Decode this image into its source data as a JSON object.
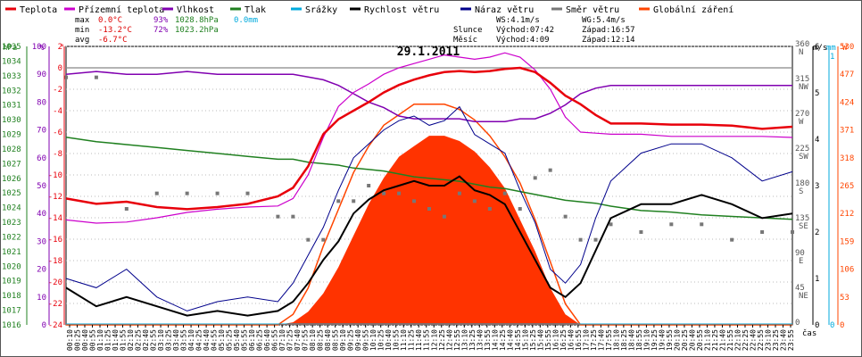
{
  "chart_data": {
    "type": "line",
    "title": "29.1.2011",
    "legend": [
      {
        "name": "Teplota",
        "color": "#e8000b"
      },
      {
        "name": "Přízemní teplota",
        "color": "#cc00cc"
      },
      {
        "name": "Vlhkost",
        "color": "#8000b0"
      },
      {
        "name": "Tlak",
        "color": "#208020"
      },
      {
        "name": "Srážky",
        "color": "#00aadd"
      },
      {
        "name": "Rychlost větru",
        "color": "#000000"
      },
      {
        "name": "Náraz větru",
        "color": "#00008b"
      },
      {
        "name": "Směr větru",
        "color": "#777777"
      },
      {
        "name": "Globální záření",
        "color": "#ff4500"
      }
    ],
    "stats": {
      "max_label": "max",
      "max_temp": "0.0°C",
      "max_hum": "93%",
      "max_press": "1028.8hPa",
      "max_rain": "0.0mm",
      "min_label": "min",
      "min_temp": "-13.2°C",
      "min_hum": "72%",
      "min_press": "1023.2hPa",
      "avg_label": "avg",
      "avg_temp": "-6.7°C",
      "ws_label": "WS:4.1m/s",
      "wg_label": "WG:5.4m/s",
      "sun_label": "Slunce",
      "sun_rise": "Východ:07:42",
      "sun_set": "Západ:16:57",
      "moon_label": "Měsíc",
      "moon_rise": "Východ:4:09",
      "moon_set": "Západ:12:14"
    },
    "axes": {
      "hpa_unit": "hPa",
      "pct_unit": "%",
      "temp_unit": "°",
      "ms_unit": "m/s",
      "mm_unit": "mm",
      "w_unit": "W",
      "hpa_ticks": [
        "1035",
        "1034",
        "1033",
        "1032",
        "1031",
        "1030",
        "1029",
        "1028",
        "1027",
        "1026",
        "1025",
        "1024",
        "1023",
        "1022",
        "1021",
        "1020",
        "1019",
        "1018",
        "1017",
        "1016"
      ],
      "pct_ticks": [
        "100",
        "90",
        "80",
        "70",
        "60",
        "50",
        "40",
        "30",
        "20",
        "10",
        "0"
      ],
      "temp_ticks": [
        "2",
        "0",
        "-2",
        "-4",
        "-6",
        "-8",
        "-10",
        "-12",
        "-14",
        "-16",
        "-18",
        "-20",
        "-22",
        "-24"
      ],
      "temp_range": [
        -24,
        2
      ],
      "dir_ticks": [
        {
          "deg": "360",
          "lbl": "N"
        },
        {
          "deg": "315",
          "lbl": "NW"
        },
        {
          "deg": "270",
          "lbl": "W"
        },
        {
          "deg": "225",
          "lbl": "SW"
        },
        {
          "deg": "180",
          "lbl": "S"
        },
        {
          "deg": "135",
          "lbl": "SE"
        },
        {
          "deg": "90",
          "lbl": "E"
        },
        {
          "deg": "45",
          "lbl": "NE"
        },
        {
          "deg": "0",
          "lbl": ""
        }
      ],
      "ms_ticks": [
        "6",
        "5",
        "4",
        "3",
        "2",
        "1",
        "0"
      ],
      "mm_ticks": [
        "1",
        "0"
      ],
      "w_ticks": [
        "530",
        "477",
        "424",
        "371",
        "318",
        "265",
        "212",
        "159",
        "106",
        "53",
        "0"
      ],
      "time_unit": "čas",
      "time_ticks": [
        "00:10",
        "00:25",
        "00:40",
        "00:55",
        "01:10",
        "01:25",
        "01:40",
        "01:55",
        "02:10",
        "02:25",
        "02:40",
        "02:55",
        "03:10",
        "03:25",
        "03:40",
        "03:55",
        "04:10",
        "04:25",
        "04:40",
        "04:55",
        "05:10",
        "05:25",
        "05:40",
        "05:55",
        "06:10",
        "06:25",
        "06:40",
        "06:55",
        "07:10",
        "07:25",
        "07:40",
        "07:55",
        "08:10",
        "08:25",
        "08:40",
        "08:55",
        "09:10",
        "09:25",
        "09:40",
        "09:55",
        "10:10",
        "10:25",
        "10:40",
        "10:55",
        "11:10",
        "11:25",
        "11:40",
        "11:55",
        "12:10",
        "12:25",
        "12:40",
        "12:55",
        "13:10",
        "13:25",
        "13:40",
        "13:55",
        "14:10",
        "14:25",
        "14:40",
        "14:55",
        "15:10",
        "15:25",
        "15:40",
        "15:55",
        "16:10",
        "16:25",
        "16:40",
        "16:55",
        "17:10",
        "17:25",
        "17:40",
        "17:55",
        "18:10",
        "18:25",
        "18:40",
        "18:55",
        "19:10",
        "19:25",
        "19:40",
        "19:55",
        "20:10",
        "20:25",
        "20:40",
        "20:55",
        "21:10",
        "21:25",
        "21:40",
        "21:55",
        "22:10",
        "22:25",
        "22:40",
        "22:55",
        "23:10",
        "23:25",
        "23:40",
        "23:55"
      ]
    },
    "x_hours": [
      0,
      1,
      2,
      3,
      4,
      5,
      6,
      7,
      7.5,
      8,
      8.5,
      9,
      9.5,
      10,
      10.5,
      11,
      11.5,
      12,
      12.5,
      13,
      13.5,
      14,
      14.5,
      15,
      15.5,
      16,
      16.5,
      17,
      17.5,
      18,
      19,
      20,
      21,
      22,
      23,
      24
    ],
    "series": [
      {
        "name": "Teplota",
        "unit": "°C",
        "values": [
          -12.2,
          -12.7,
          -12.5,
          -13.0,
          -13.2,
          -13.0,
          -12.7,
          -12.0,
          -11.2,
          -9.2,
          -6.2,
          -4.8,
          -4.0,
          -3.2,
          -2.3,
          -1.6,
          -1.1,
          -0.7,
          -0.4,
          -0.3,
          -0.4,
          -0.3,
          -0.1,
          0.0,
          -0.4,
          -1.4,
          -2.6,
          -3.4,
          -4.4,
          -5.2,
          -5.2,
          -5.3,
          -5.3,
          -5.4,
          -5.7,
          -5.5
        ]
      },
      {
        "name": "Přízemní teplota",
        "unit": "°C",
        "values": [
          -14.2,
          -14.5,
          -14.4,
          -14.0,
          -13.5,
          -13.2,
          -13.0,
          -12.9,
          -12.2,
          -10.0,
          -6.5,
          -3.6,
          -2.3,
          -1.5,
          -0.6,
          0.0,
          0.4,
          0.8,
          1.2,
          1.0,
          0.8,
          1.0,
          1.4,
          1.0,
          -0.2,
          -2.0,
          -4.6,
          -6.0,
          -6.1,
          -6.2,
          -6.2,
          -6.4,
          -6.4,
          -6.4,
          -6.4,
          -6.5
        ]
      },
      {
        "name": "Vlhkost",
        "unit": "%",
        "values": [
          90,
          91,
          90,
          90,
          91,
          90,
          90,
          90,
          90,
          89,
          88,
          86,
          83,
          80,
          78,
          75,
          74,
          74,
          74,
          74,
          73,
          73,
          73,
          74,
          74,
          76,
          79,
          83,
          85,
          86,
          86,
          86,
          86,
          86,
          86,
          86
        ]
      },
      {
        "name": "Tlak",
        "unit": "hPa",
        "values": [
          1028.8,
          1028.5,
          1028.3,
          1028.1,
          1027.9,
          1027.7,
          1027.5,
          1027.3,
          1027.3,
          1027.1,
          1027.0,
          1026.9,
          1026.7,
          1026.6,
          1026.5,
          1026.3,
          1026.1,
          1026.0,
          1025.9,
          1025.8,
          1025.6,
          1025.4,
          1025.3,
          1025.1,
          1024.9,
          1024.7,
          1024.5,
          1024.4,
          1024.3,
          1024.1,
          1023.8,
          1023.7,
          1023.5,
          1023.4,
          1023.3,
          1023.2
        ]
      },
      {
        "name": "Rychlost větru",
        "unit": "m/s",
        "values": [
          0.8,
          0.4,
          0.6,
          0.4,
          0.2,
          0.3,
          0.2,
          0.3,
          0.5,
          0.9,
          1.4,
          1.8,
          2.4,
          2.7,
          2.9,
          3.0,
          3.1,
          3.0,
          3.0,
          3.2,
          2.9,
          2.8,
          2.6,
          2.0,
          1.4,
          0.8,
          0.6,
          0.9,
          1.6,
          2.3,
          2.6,
          2.6,
          2.8,
          2.6,
          2.3,
          2.4
        ]
      },
      {
        "name": "Náraz větru",
        "unit": "m/s",
        "values": [
          1.0,
          0.8,
          1.2,
          0.6,
          0.3,
          0.5,
          0.6,
          0.5,
          0.9,
          1.5,
          2.1,
          2.9,
          3.6,
          3.9,
          4.2,
          4.4,
          4.5,
          4.3,
          4.4,
          4.7,
          4.1,
          3.9,
          3.7,
          2.9,
          2.2,
          1.2,
          0.9,
          1.3,
          2.3,
          3.1,
          3.7,
          3.9,
          3.9,
          3.6,
          3.1,
          3.3
        ]
      },
      {
        "name": "Směr větru",
        "unit": "°",
        "values": [
          320,
          320,
          150,
          170,
          170,
          170,
          170,
          140,
          140,
          110,
          110,
          160,
          160,
          180,
          170,
          170,
          160,
          150,
          140,
          170,
          160,
          150,
          170,
          150,
          190,
          200,
          140,
          110,
          110,
          130,
          120,
          130,
          130,
          110,
          120,
          120
        ]
      },
      {
        "name": "Globální záření",
        "unit": "W/m²",
        "values": [
          0,
          0,
          0,
          0,
          0,
          0,
          0,
          0,
          5,
          25,
          60,
          110,
          170,
          230,
          280,
          320,
          340,
          360,
          360,
          350,
          330,
          300,
          260,
          200,
          140,
          70,
          20,
          0,
          0,
          0,
          0,
          0,
          0,
          0,
          0,
          0
        ]
      },
      {
        "name": "Globální záření max",
        "unit": "W/m²",
        "values": [
          0,
          0,
          0,
          0,
          0,
          0,
          0,
          0,
          20,
          70,
          150,
          220,
          290,
          340,
          380,
          400,
          420,
          420,
          420,
          410,
          390,
          360,
          320,
          270,
          200,
          120,
          40,
          0,
          0,
          0,
          0,
          0,
          0,
          0,
          0,
          0
        ]
      },
      {
        "name": "Srážky",
        "unit": "mm",
        "values": [
          0,
          0,
          0,
          0,
          0,
          0,
          0,
          0,
          0,
          0,
          0,
          0,
          0,
          0,
          0,
          0,
          0,
          0,
          0,
          0,
          0,
          0,
          0,
          0,
          0,
          0,
          0,
          0,
          0,
          0,
          0,
          0,
          0,
          0,
          0,
          0
        ]
      }
    ]
  }
}
